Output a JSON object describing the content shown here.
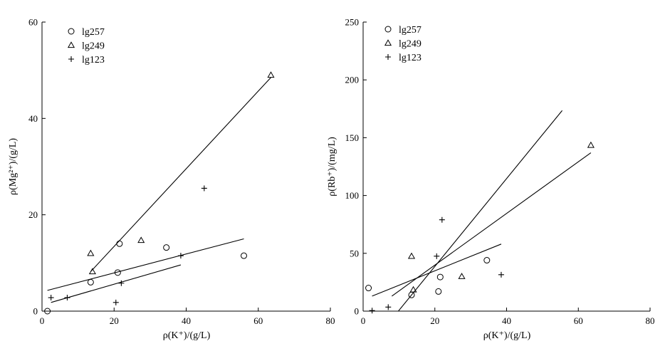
{
  "chart_data": [
    {
      "type": "scatter",
      "title": "",
      "xlabel": "ρ(K⁺)/(g/L)",
      "ylabel": "ρ(Mg²⁺)/(g/L)",
      "xlim": [
        0,
        80
      ],
      "ylim": [
        0,
        60
      ],
      "xticks": [
        "0",
        "20",
        "40",
        "60",
        "80"
      ],
      "yticks": [
        "0",
        "20",
        "40",
        "60"
      ],
      "grid": false,
      "legend_position": "top-left",
      "series": [
        {
          "name": "lg257",
          "marker": "circle",
          "x": [
            1.5,
            13.5,
            21,
            21.5,
            34.5,
            56
          ],
          "y": [
            0,
            6,
            8,
            14,
            13.2,
            11.5
          ]
        },
        {
          "name": "lg249",
          "marker": "triangle",
          "x": [
            13.5,
            14,
            27.5,
            63.5
          ],
          "y": [
            12,
            8.2,
            14.7,
            49
          ]
        },
        {
          "name": "lg123",
          "marker": "plus",
          "x": [
            2.5,
            7,
            20.5,
            22,
            38.5,
            45
          ],
          "y": [
            2.8,
            2.8,
            1.8,
            5.8,
            11.5,
            25.5
          ]
        }
      ],
      "fit_lines": [
        {
          "series": "lg257",
          "x": [
            1.5,
            56
          ],
          "y": [
            4.3,
            15
          ]
        },
        {
          "series": "lg249",
          "x": [
            13.5,
            63.5
          ],
          "y": [
            8.2,
            48.5
          ]
        },
        {
          "series": "lg123",
          "x": [
            2.5,
            38.5
          ],
          "y": [
            1.8,
            9.6
          ]
        }
      ]
    },
    {
      "type": "scatter",
      "title": "",
      "xlabel": "ρ(K⁺)/(g/L)",
      "ylabel": "ρ(Rb⁺)/(mg/L)",
      "xlim": [
        0,
        80
      ],
      "ylim": [
        0,
        250
      ],
      "xticks": [
        "0",
        "20",
        "40",
        "60",
        "80"
      ],
      "yticks": [
        "0",
        "50",
        "100",
        "150",
        "200",
        "250"
      ],
      "grid": false,
      "legend_position": "top-left",
      "series": [
        {
          "name": "lg257",
          "marker": "circle",
          "x": [
            1.5,
            13.5,
            21,
            21.5,
            34.5
          ],
          "y": [
            20,
            14,
            17,
            29.5,
            44
          ]
        },
        {
          "name": "lg249",
          "marker": "triangle",
          "x": [
            13.5,
            14,
            27.5,
            63.5
          ],
          "y": [
            47.5,
            18.5,
            30,
            143.5
          ]
        },
        {
          "name": "lg123",
          "marker": "plus",
          "x": [
            2.5,
            7,
            20.5,
            22,
            38.5
          ],
          "y": [
            0.5,
            3.5,
            47.5,
            79,
            31.5
          ]
        }
      ],
      "fit_lines": [
        {
          "series": "lg257",
          "x": [
            2.5,
            38.5
          ],
          "y": [
            13,
            58
          ]
        },
        {
          "series": "lg249",
          "x": [
            8,
            63.5
          ],
          "y": [
            13,
            137
          ]
        },
        {
          "series": "lg123",
          "x": [
            8.5,
            55.5
          ],
          "y": [
            -5,
            173.5
          ]
        }
      ]
    }
  ]
}
